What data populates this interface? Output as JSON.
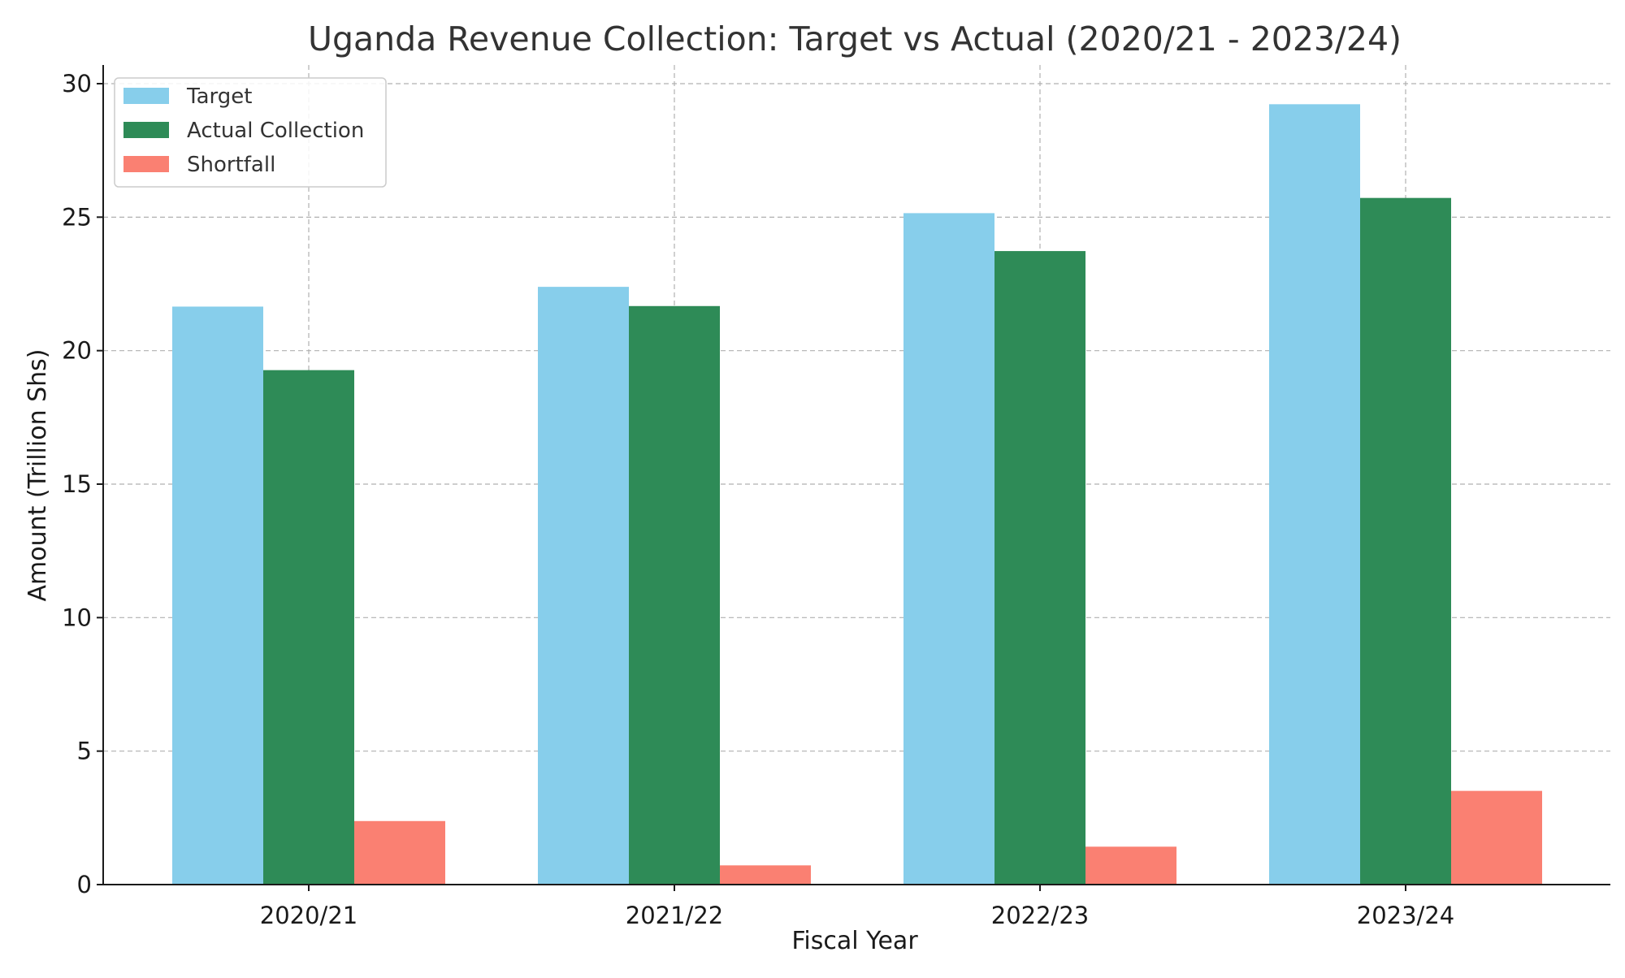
{
  "chart_data": {
    "type": "bar",
    "title": "Uganda Revenue Collection: Target vs Actual (2020/21 - 2023/24)",
    "xlabel": "Fiscal Year",
    "ylabel": "Amount (Trillion Shs)",
    "categories": [
      "2020/21",
      "2021/22",
      "2022/23",
      "2023/24"
    ],
    "ylim": [
      0,
      30.7
    ],
    "yticks": [
      0,
      5,
      10,
      15,
      20,
      25,
      30
    ],
    "grid": true,
    "legend_position": "top-left",
    "series": [
      {
        "name": "Target",
        "color": "#87CEEB",
        "values": [
          21.65,
          22.39,
          25.15,
          29.23
        ]
      },
      {
        "name": "Actual Collection",
        "color": "#2E8B57",
        "values": [
          19.27,
          21.67,
          23.73,
          25.72
        ]
      },
      {
        "name": "Shortfall",
        "color": "#FA8072",
        "values": [
          2.38,
          0.72,
          1.42,
          3.51
        ]
      }
    ]
  }
}
